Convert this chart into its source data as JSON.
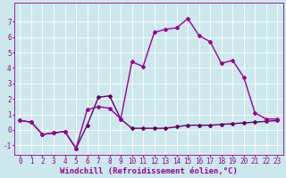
{
  "xlabel": "Windchill (Refroidissement éolien,°C)",
  "background_color": "#cce8ec",
  "grid_color": "#ffffff",
  "line_color_main": "#990099",
  "line_color_secondary": "#660066",
  "x_ticks": [
    0,
    1,
    2,
    3,
    4,
    5,
    6,
    7,
    8,
    9,
    10,
    11,
    12,
    13,
    14,
    15,
    16,
    17,
    18,
    19,
    20,
    21,
    22,
    23
  ],
  "ylim": [
    -1.6,
    8.2
  ],
  "xlim": [
    -0.5,
    23.5
  ],
  "series1_x": [
    0,
    1,
    2,
    3,
    4,
    5,
    6,
    7,
    8,
    9,
    10,
    11,
    12,
    13,
    14,
    15,
    16,
    17,
    18,
    19,
    20,
    21,
    22,
    23
  ],
  "series1_y": [
    0.6,
    0.5,
    -0.3,
    -0.2,
    -0.1,
    -1.2,
    0.3,
    2.1,
    2.2,
    0.7,
    0.1,
    0.1,
    0.1,
    0.1,
    0.2,
    0.3,
    0.3,
    0.3,
    0.35,
    0.4,
    0.45,
    0.5,
    0.55,
    0.6
  ],
  "series2_x": [
    0,
    1,
    2,
    3,
    4,
    5,
    6,
    7,
    8,
    9,
    10,
    11,
    12,
    13,
    14,
    15,
    16,
    17,
    18,
    19,
    20,
    21,
    22,
    23
  ],
  "series2_y": [
    0.6,
    0.5,
    -0.3,
    -0.2,
    -0.1,
    -1.2,
    1.3,
    1.5,
    1.4,
    0.7,
    4.4,
    4.1,
    6.3,
    6.5,
    6.6,
    7.2,
    6.1,
    5.7,
    4.3,
    4.5,
    3.4,
    1.1,
    0.7,
    0.7
  ],
  "marker": "D",
  "marker_size": 2,
  "line_width": 1.0,
  "tick_fontsize": 5.5,
  "label_fontsize": 6.5,
  "yticks": [
    -1,
    0,
    1,
    2,
    3,
    4,
    5,
    6,
    7
  ]
}
